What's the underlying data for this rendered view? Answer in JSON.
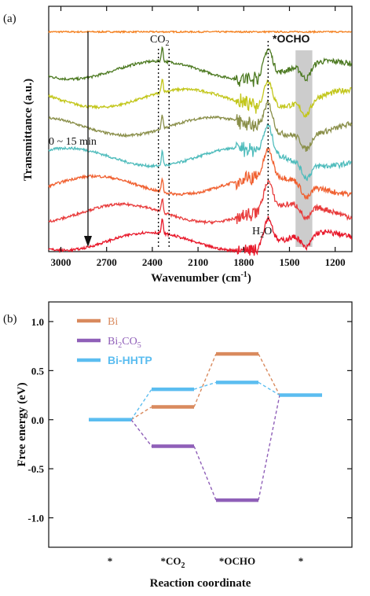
{
  "figure": {
    "panels": [
      {
        "label": "(a)"
      },
      {
        "label": "(b)"
      }
    ]
  },
  "chart_data": [
    {
      "type": "line",
      "panel": "(a)",
      "xlabel_main": "Wavenumber (cm",
      "xlabel_sup": "-1",
      "xlabel_tail": ")",
      "ylabel": "Transmittance (a.u.)",
      "xlim": [
        3080,
        1090
      ],
      "x_reversed": true,
      "xticks": [
        3000,
        2700,
        2400,
        2100,
        1800,
        1500,
        1200
      ],
      "xtick_labels": [
        "3000",
        "2700",
        "2400",
        "2100",
        "1800",
        "1500",
        "1200"
      ],
      "y_ticks_shown": false,
      "annotations": {
        "co2_main": "CO",
        "co2_sub": "2",
        "h2o_main": "H",
        "h2o_sub": "2",
        "h2o_tail": "O",
        "ocho": "*OCHO",
        "time": "0 ~ 15 min"
      },
      "markers": {
        "co2_dotted_lines": [
          2360,
          2290
        ],
        "h2o_dotted_line": 1640,
        "ocho_band": [
          1460,
          1350
        ]
      },
      "colors": {
        "ocho_text": "#8a2be2",
        "band": "#bfbfbf"
      },
      "series": [
        {
          "color": "#f4801f",
          "offset": 8.6
        },
        {
          "color": "#4d7a22",
          "offset": 7.1
        },
        {
          "color": "#c2c61a",
          "offset": 6.0
        },
        {
          "color": "#8a8f4a",
          "offset": 4.9
        },
        {
          "color": "#4fbcbc",
          "offset": 3.7
        },
        {
          "color": "#f06030",
          "offset": 2.6
        },
        {
          "color": "#e83c3c",
          "offset": 1.5
        },
        {
          "color": "#e8182a",
          "offset": 0.4
        }
      ]
    },
    {
      "type": "line",
      "panel": "(b)",
      "xlabel": "Reaction coordinate",
      "ylabel": "Free energy (eV)",
      "ylim": [
        -1.3,
        1.2
      ],
      "yticks": [
        -1.0,
        -0.5,
        0.0,
        0.5,
        1.0
      ],
      "ytick_labels": [
        "-1.0",
        "-0.5",
        "0.0",
        "0.5",
        "1.0"
      ],
      "categories": [
        "*",
        "*CO2",
        "*OCHO",
        "*"
      ],
      "category_labels": [
        {
          "main": "*",
          "sub": ""
        },
        {
          "main": "*CO",
          "sub": "2"
        },
        {
          "main": "*OCHO",
          "sub": ""
        },
        {
          "main": "*",
          "sub": ""
        }
      ],
      "legend_position": "top-left",
      "series": [
        {
          "name": "Bi",
          "name_main": "Bi",
          "name_sub": "",
          "name_tail": "",
          "color": "#d98a5e",
          "values": [
            0.0,
            0.13,
            0.67,
            0.25
          ]
        },
        {
          "name": "Bi2CO5",
          "name_main": "Bi",
          "name_sub": "2",
          "name_tail": "CO",
          "name_sub2": "5",
          "color": "#8f5fb8",
          "values": [
            0.0,
            -0.27,
            -0.82,
            0.25
          ]
        },
        {
          "name": "Bi-HHTP",
          "name_main": "Bi-HHTP",
          "name_sub": "",
          "name_tail": "",
          "color": "#5bbdf0",
          "values": [
            0.0,
            0.31,
            0.38,
            0.25
          ]
        }
      ]
    }
  ]
}
